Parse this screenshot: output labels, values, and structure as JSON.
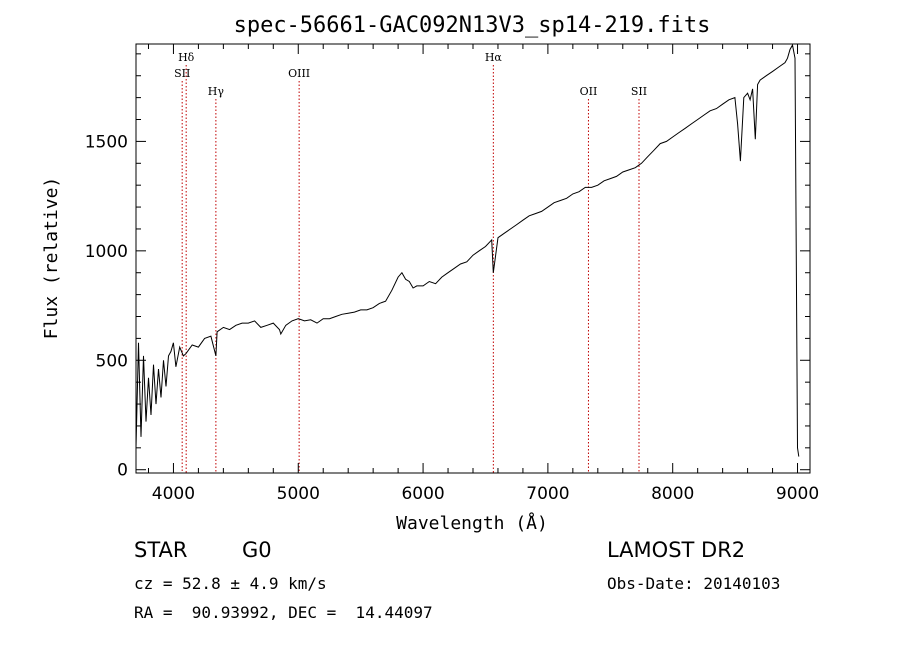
{
  "chart_data": {
    "type": "line",
    "title": "spec-56661-GAC092N13V3_sp14-219.fits",
    "xlabel": "Wavelength (Å)",
    "ylabel": "Flux (relative)",
    "xlim": [
      3700,
      9100
    ],
    "ylim": [
      -15,
      1945
    ],
    "xticks": [
      4000,
      5000,
      6000,
      7000,
      8000,
      9000
    ],
    "yticks": [
      0,
      500,
      1000,
      1500
    ],
    "grid": false,
    "line_color": "#000000",
    "marker_color": "#c00000",
    "emission_lines": [
      {
        "label": "Hδ",
        "x": 4102,
        "row": 0
      },
      {
        "label": "SII",
        "x": 4070,
        "row": 1
      },
      {
        "label": "Hγ",
        "x": 4340,
        "row": 2
      },
      {
        "label": "OIII",
        "x": 5007,
        "row": 1
      },
      {
        "label": "Hα",
        "x": 6563,
        "row": 0
      },
      {
        "label": "OII",
        "x": 7325,
        "row": 2
      },
      {
        "label": "SII",
        "x": 7730,
        "row": 2
      }
    ],
    "series": [
      {
        "x": [
          3700,
          3720,
          3740,
          3760,
          3780,
          3800,
          3820,
          3840,
          3860,
          3880,
          3900,
          3920,
          3940,
          3960,
          3980,
          4000,
          4020,
          4050,
          4080,
          4100,
          4150,
          4200,
          4250,
          4300,
          4340,
          4350,
          4400,
          4450,
          4500,
          4550,
          4600,
          4650,
          4700,
          4750,
          4800,
          4850,
          4860,
          4900,
          4950,
          5000,
          5050,
          5100,
          5150,
          5200,
          5250,
          5300,
          5350,
          5400,
          5450,
          5500,
          5550,
          5600,
          5650,
          5700,
          5750,
          5800,
          5830,
          5860,
          5890,
          5920,
          5950,
          6000,
          6050,
          6100,
          6150,
          6200,
          6250,
          6300,
          6350,
          6400,
          6450,
          6500,
          6550,
          6563,
          6600,
          6650,
          6700,
          6750,
          6800,
          6850,
          6900,
          6950,
          7000,
          7050,
          7100,
          7150,
          7200,
          7250,
          7300,
          7350,
          7400,
          7450,
          7500,
          7550,
          7600,
          7650,
          7700,
          7750,
          7800,
          7850,
          7900,
          7950,
          8000,
          8050,
          8100,
          8150,
          8200,
          8250,
          8300,
          8350,
          8400,
          8450,
          8498,
          8520,
          8542,
          8570,
          8600,
          8620,
          8640,
          8662,
          8680,
          8700,
          8750,
          8800,
          8850,
          8900,
          8920,
          8940,
          8960,
          8980,
          9000,
          9010
        ],
        "y": [
          100,
          580,
          150,
          520,
          220,
          420,
          250,
          480,
          300,
          460,
          330,
          500,
          380,
          520,
          540,
          580,
          470,
          560,
          520,
          530,
          570,
          560,
          600,
          610,
          520,
          630,
          650,
          640,
          660,
          670,
          670,
          680,
          650,
          660,
          670,
          640,
          620,
          660,
          680,
          690,
          680,
          685,
          670,
          690,
          690,
          700,
          710,
          715,
          720,
          730,
          730,
          740,
          760,
          770,
          820,
          880,
          900,
          870,
          860,
          830,
          840,
          840,
          860,
          850,
          880,
          900,
          920,
          940,
          950,
          980,
          1000,
          1020,
          1050,
          900,
          1060,
          1080,
          1100,
          1120,
          1140,
          1160,
          1170,
          1180,
          1200,
          1220,
          1230,
          1240,
          1260,
          1270,
          1290,
          1290,
          1300,
          1320,
          1330,
          1340,
          1360,
          1370,
          1380,
          1400,
          1430,
          1460,
          1490,
          1500,
          1520,
          1540,
          1560,
          1580,
          1600,
          1620,
          1640,
          1650,
          1670,
          1690,
          1700,
          1580,
          1410,
          1700,
          1720,
          1690,
          1740,
          1510,
          1760,
          1780,
          1800,
          1820,
          1840,
          1860,
          1880,
          1920,
          1940,
          1880,
          100,
          60
        ]
      }
    ]
  },
  "info": {
    "object_class": "STAR",
    "subclass": "G0",
    "survey": "LAMOST DR2",
    "redshift_line": "cz = 52.8 ± 4.9 km/s",
    "obs_date": "Obs-Date: 20140103",
    "coords": "RA =  90.93992, DEC =  14.44097"
  }
}
